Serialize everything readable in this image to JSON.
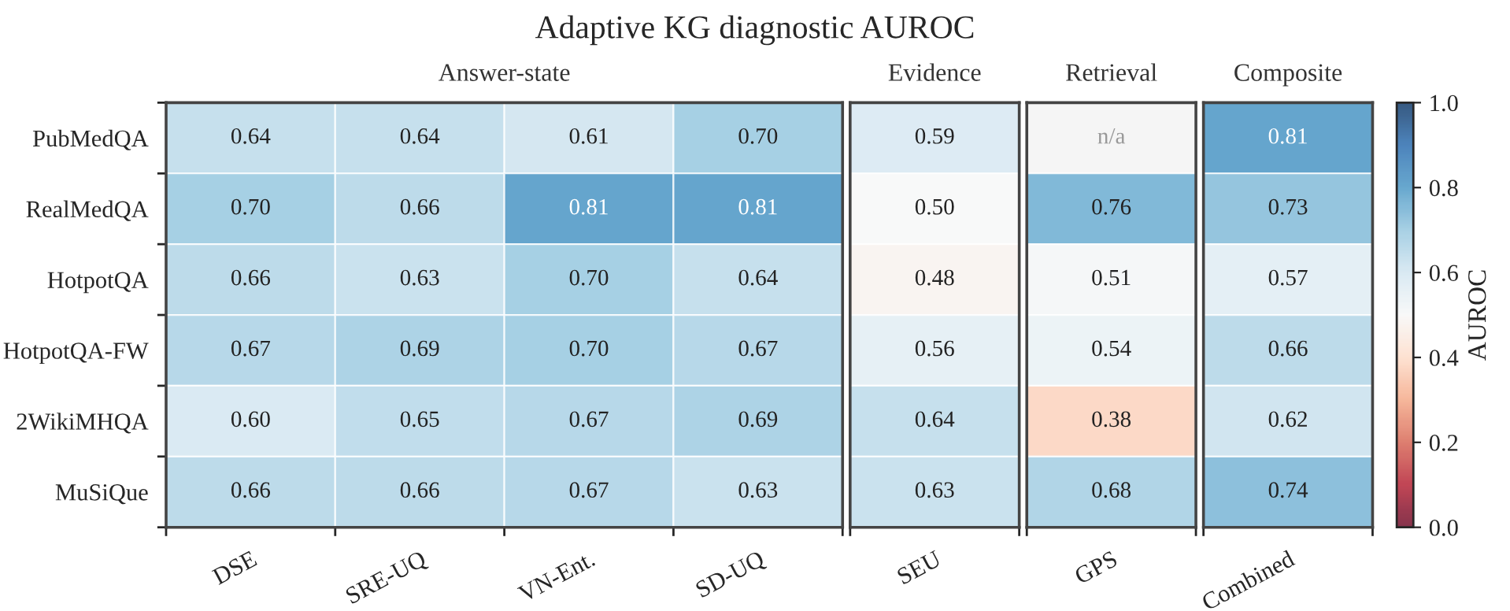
{
  "chart_data": {
    "type": "heatmap",
    "title": "Adaptive KG diagnostic AUROC",
    "categories": [
      "DSE",
      "SRE-UQ",
      "VN-Ent.",
      "SD-UQ",
      "SEU",
      "GPS",
      "Combined"
    ],
    "y_categories": [
      "PubMedQA",
      "RealMedQA",
      "HotpotQA",
      "HotpotQA-FW",
      "2WikiMHQA",
      "MuSiQue"
    ],
    "cells": [
      [
        0.64,
        0.64,
        0.61,
        0.7,
        0.59,
        null,
        0.81
      ],
      [
        0.7,
        0.66,
        0.81,
        0.81,
        0.5,
        0.76,
        0.73
      ],
      [
        0.66,
        0.63,
        0.7,
        0.64,
        0.48,
        0.51,
        0.57
      ],
      [
        0.67,
        0.69,
        0.7,
        0.67,
        0.56,
        0.54,
        0.66
      ],
      [
        0.6,
        0.65,
        0.67,
        0.69,
        0.64,
        0.38,
        0.62
      ],
      [
        0.66,
        0.66,
        0.67,
        0.63,
        0.63,
        0.68,
        0.74
      ]
    ],
    "cell_labels": [
      [
        "0.64",
        "0.64",
        "0.61",
        "0.70",
        "0.59",
        "n/a",
        "0.81"
      ],
      [
        "0.70",
        "0.66",
        "0.81",
        "0.81",
        "0.50",
        "0.76",
        "0.73"
      ],
      [
        "0.66",
        "0.63",
        "0.70",
        "0.64",
        "0.48",
        "0.51",
        "0.57"
      ],
      [
        "0.67",
        "0.69",
        "0.70",
        "0.67",
        "0.56",
        "0.54",
        "0.66"
      ],
      [
        "0.60",
        "0.65",
        "0.67",
        "0.69",
        "0.64",
        "0.38",
        "0.62"
      ],
      [
        "0.66",
        "0.66",
        "0.67",
        "0.63",
        "0.63",
        "0.68",
        "0.74"
      ]
    ],
    "data_labels": true,
    "clim": [
      0,
      1
    ],
    "cticks": [
      {
        "value": 0,
        "label": "0.0"
      },
      0.2,
      0.4,
      0.6,
      0.8,
      {
        "value": 1,
        "label": "1.0"
      }
    ],
    "clabel": "AUROC",
    "annotations": [
      "Answer-state",
      "Evidence",
      "Retrieval",
      "Composite"
    ]
  }
}
